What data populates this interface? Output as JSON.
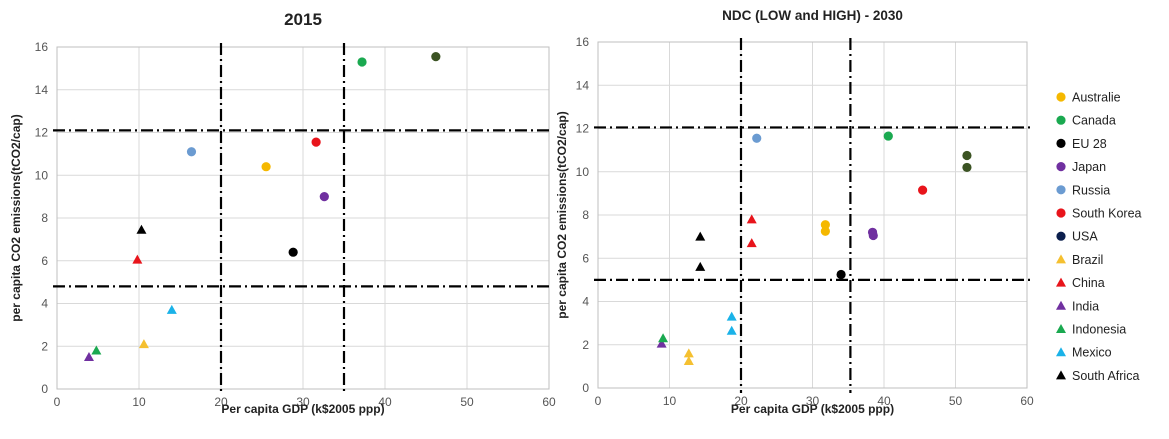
{
  "colors": {
    "Australie": "#f5b800",
    "Canada": "#1aa950",
    "EU 28": "#000000",
    "Japan": "#7030a0",
    "Russia": "#6b9bd1",
    "South Korea": "#e8141b",
    "USA": "#0b1f4d",
    "Brazil": "#f5c030",
    "China": "#e8141b",
    "India": "#7030a0",
    "Indonesia": "#1aa950",
    "Mexico": "#1ab2e8",
    "South Africa": "#000000",
    "usa_2015_dot": "#3b5323"
  },
  "legend": [
    {
      "name": "Australie",
      "marker": "circle"
    },
    {
      "name": "Canada",
      "marker": "circle"
    },
    {
      "name": "EU 28",
      "marker": "circle"
    },
    {
      "name": "Japan",
      "marker": "circle"
    },
    {
      "name": "Russia",
      "marker": "circle"
    },
    {
      "name": "South Korea",
      "marker": "circle"
    },
    {
      "name": "USA",
      "marker": "circle"
    },
    {
      "name": "Brazil",
      "marker": "triangle"
    },
    {
      "name": "China",
      "marker": "triangle"
    },
    {
      "name": "India",
      "marker": "triangle"
    },
    {
      "name": "Indonesia",
      "marker": "triangle"
    },
    {
      "name": "Mexico",
      "marker": "triangle"
    },
    {
      "name": "South Africa",
      "marker": "triangle"
    }
  ],
  "chart_data": [
    {
      "type": "scatter",
      "title": "2015",
      "xlabel": "Per capita GDP (k$2005 ppp)",
      "ylabel": "per capita CO2 emissions(tCO2/cap)",
      "xlim": [
        0,
        60
      ],
      "ylim": [
        0,
        16
      ],
      "xticks": [
        0,
        10,
        20,
        30,
        40,
        50,
        60
      ],
      "yticks": [
        0,
        2,
        4,
        6,
        8,
        10,
        12,
        14,
        16
      ],
      "grid": true,
      "ref_lines": {
        "x": [
          20,
          35
        ],
        "y": [
          12.1,
          4.8
        ]
      },
      "series": [
        {
          "name": "Australie",
          "marker": "circle",
          "points": [
            [
              25.5,
              10.4
            ]
          ]
        },
        {
          "name": "Canada",
          "marker": "circle",
          "points": [
            [
              37.2,
              15.3
            ]
          ]
        },
        {
          "name": "EU 28",
          "marker": "circle",
          "points": [
            [
              28.8,
              6.4
            ]
          ]
        },
        {
          "name": "Japan",
          "marker": "circle",
          "points": [
            [
              32.6,
              9.0
            ]
          ]
        },
        {
          "name": "Russia",
          "marker": "circle",
          "points": [
            [
              16.4,
              11.1
            ]
          ]
        },
        {
          "name": "South Korea",
          "marker": "circle",
          "points": [
            [
              31.6,
              11.55
            ]
          ]
        },
        {
          "name": "USA",
          "marker": "circle",
          "color_key": "usa_2015_dot",
          "points": [
            [
              46.2,
              15.55
            ]
          ]
        },
        {
          "name": "Brazil",
          "marker": "triangle",
          "points": [
            [
              10.6,
              2.1
            ]
          ]
        },
        {
          "name": "China",
          "marker": "triangle",
          "points": [
            [
              9.8,
              6.05
            ]
          ]
        },
        {
          "name": "India",
          "marker": "triangle",
          "points": [
            [
              3.9,
              1.5
            ]
          ]
        },
        {
          "name": "Indonesia",
          "marker": "triangle",
          "points": [
            [
              4.8,
              1.8
            ]
          ]
        },
        {
          "name": "Mexico",
          "marker": "triangle",
          "points": [
            [
              14.0,
              3.7
            ]
          ]
        },
        {
          "name": "South Africa",
          "marker": "triangle",
          "points": [
            [
              10.3,
              7.45
            ]
          ]
        }
      ]
    },
    {
      "type": "scatter",
      "title": "NDC (LOW and HIGH) - 2030",
      "xlabel": "Per capita GDP (k$2005 ppp)",
      "ylabel": "per capita CO2 emissions(tCO2/cap)",
      "xlim": [
        0,
        60
      ],
      "ylim": [
        0,
        16
      ],
      "xticks": [
        0,
        10,
        20,
        30,
        40,
        50,
        60
      ],
      "yticks": [
        0,
        2,
        4,
        6,
        8,
        10,
        12,
        14,
        16
      ],
      "grid": true,
      "ref_lines": {
        "x": [
          20,
          35.3
        ],
        "y": [
          12.05,
          5.0
        ]
      },
      "series": [
        {
          "name": "Australie",
          "marker": "circle",
          "points": [
            [
              31.8,
              7.55
            ],
            [
              31.8,
              7.25
            ]
          ]
        },
        {
          "name": "Canada",
          "marker": "circle",
          "points": [
            [
              40.6,
              11.65
            ]
          ]
        },
        {
          "name": "EU 28",
          "marker": "circle",
          "points": [
            [
              34.0,
              5.25
            ]
          ]
        },
        {
          "name": "Japan",
          "marker": "circle",
          "points": [
            [
              38.4,
              7.2
            ],
            [
              38.5,
              7.05
            ]
          ]
        },
        {
          "name": "Russia",
          "marker": "circle",
          "points": [
            [
              22.2,
              11.55
            ]
          ]
        },
        {
          "name": "South Korea",
          "marker": "circle",
          "points": [
            [
              45.4,
              9.15
            ]
          ]
        },
        {
          "name": "USA",
          "marker": "circle",
          "color_key": "usa_2015_dot",
          "points": [
            [
              51.6,
              10.75
            ],
            [
              51.6,
              10.2
            ]
          ]
        },
        {
          "name": "Brazil",
          "marker": "triangle",
          "points": [
            [
              12.7,
              1.6
            ],
            [
              12.7,
              1.25
            ]
          ]
        },
        {
          "name": "China",
          "marker": "triangle",
          "points": [
            [
              21.5,
              7.8
            ],
            [
              21.5,
              6.7
            ]
          ]
        },
        {
          "name": "India",
          "marker": "triangle",
          "points": [
            [
              8.9,
              2.05
            ]
          ]
        },
        {
          "name": "Indonesia",
          "marker": "triangle",
          "points": [
            [
              9.1,
              2.3
            ]
          ]
        },
        {
          "name": "Mexico",
          "marker": "triangle",
          "points": [
            [
              18.7,
              3.3
            ],
            [
              18.7,
              2.65
            ]
          ]
        },
        {
          "name": "South Africa",
          "marker": "triangle",
          "points": [
            [
              14.3,
              7.0
            ],
            [
              14.3,
              5.6
            ]
          ]
        }
      ]
    }
  ]
}
